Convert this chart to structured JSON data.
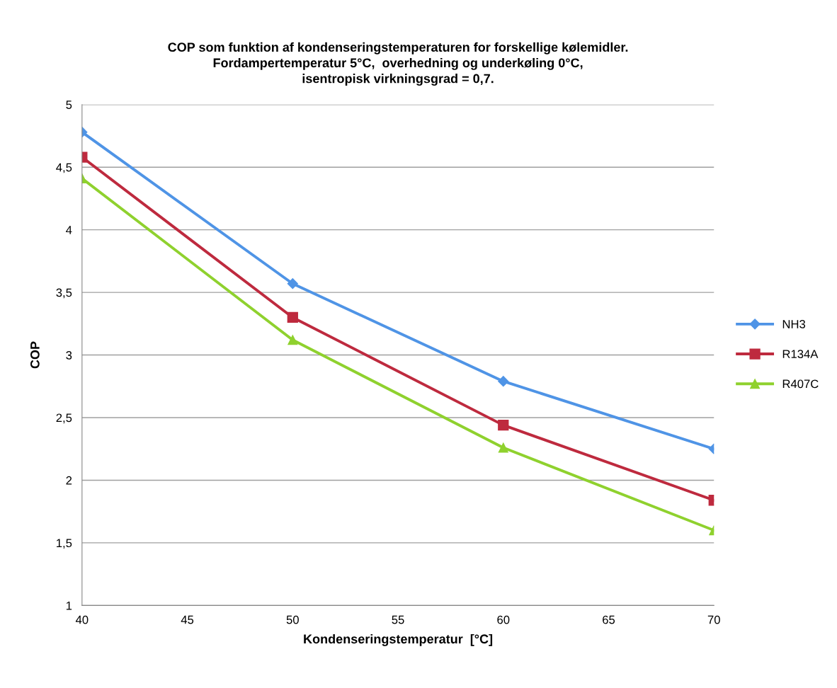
{
  "chart_data": {
    "type": "line",
    "title": "COP som funktion af kondenseringstemperaturen for forskellige kølemidler.\nFordampertemperatur 5°C,  overhedning og underkøling 0°C,\nisentropisk virkningsgrad = 0,7.",
    "xlabel": "Kondenseringstemperatur  [°C]",
    "ylabel": "COP",
    "x": [
      40,
      50,
      60,
      70
    ],
    "series": [
      {
        "name": "NH3",
        "color": "#4f94e6",
        "marker": "diamond",
        "values": [
          4.78,
          3.57,
          2.79,
          2.25
        ]
      },
      {
        "name": "R134A",
        "color": "#be2a3e",
        "marker": "square",
        "values": [
          4.58,
          3.3,
          2.44,
          1.84
        ]
      },
      {
        "name": "R407C",
        "color": "#8fd12e",
        "marker": "triangle",
        "values": [
          4.41,
          3.12,
          2.26,
          1.6
        ]
      }
    ],
    "xlim": [
      40,
      70
    ],
    "xticks": [
      40,
      45,
      50,
      55,
      60,
      65,
      70
    ],
    "ylim": [
      1,
      5
    ],
    "yticks": [
      1,
      {
        "value": 1.5,
        "label": "1,5"
      },
      2,
      {
        "value": 2.5,
        "label": "2,5"
      },
      3,
      {
        "value": 3.5,
        "label": "3,5"
      },
      4,
      {
        "value": 4.5,
        "label": "4,5"
      },
      5
    ],
    "grid": "y",
    "legend": "right",
    "line_style": "solid"
  }
}
